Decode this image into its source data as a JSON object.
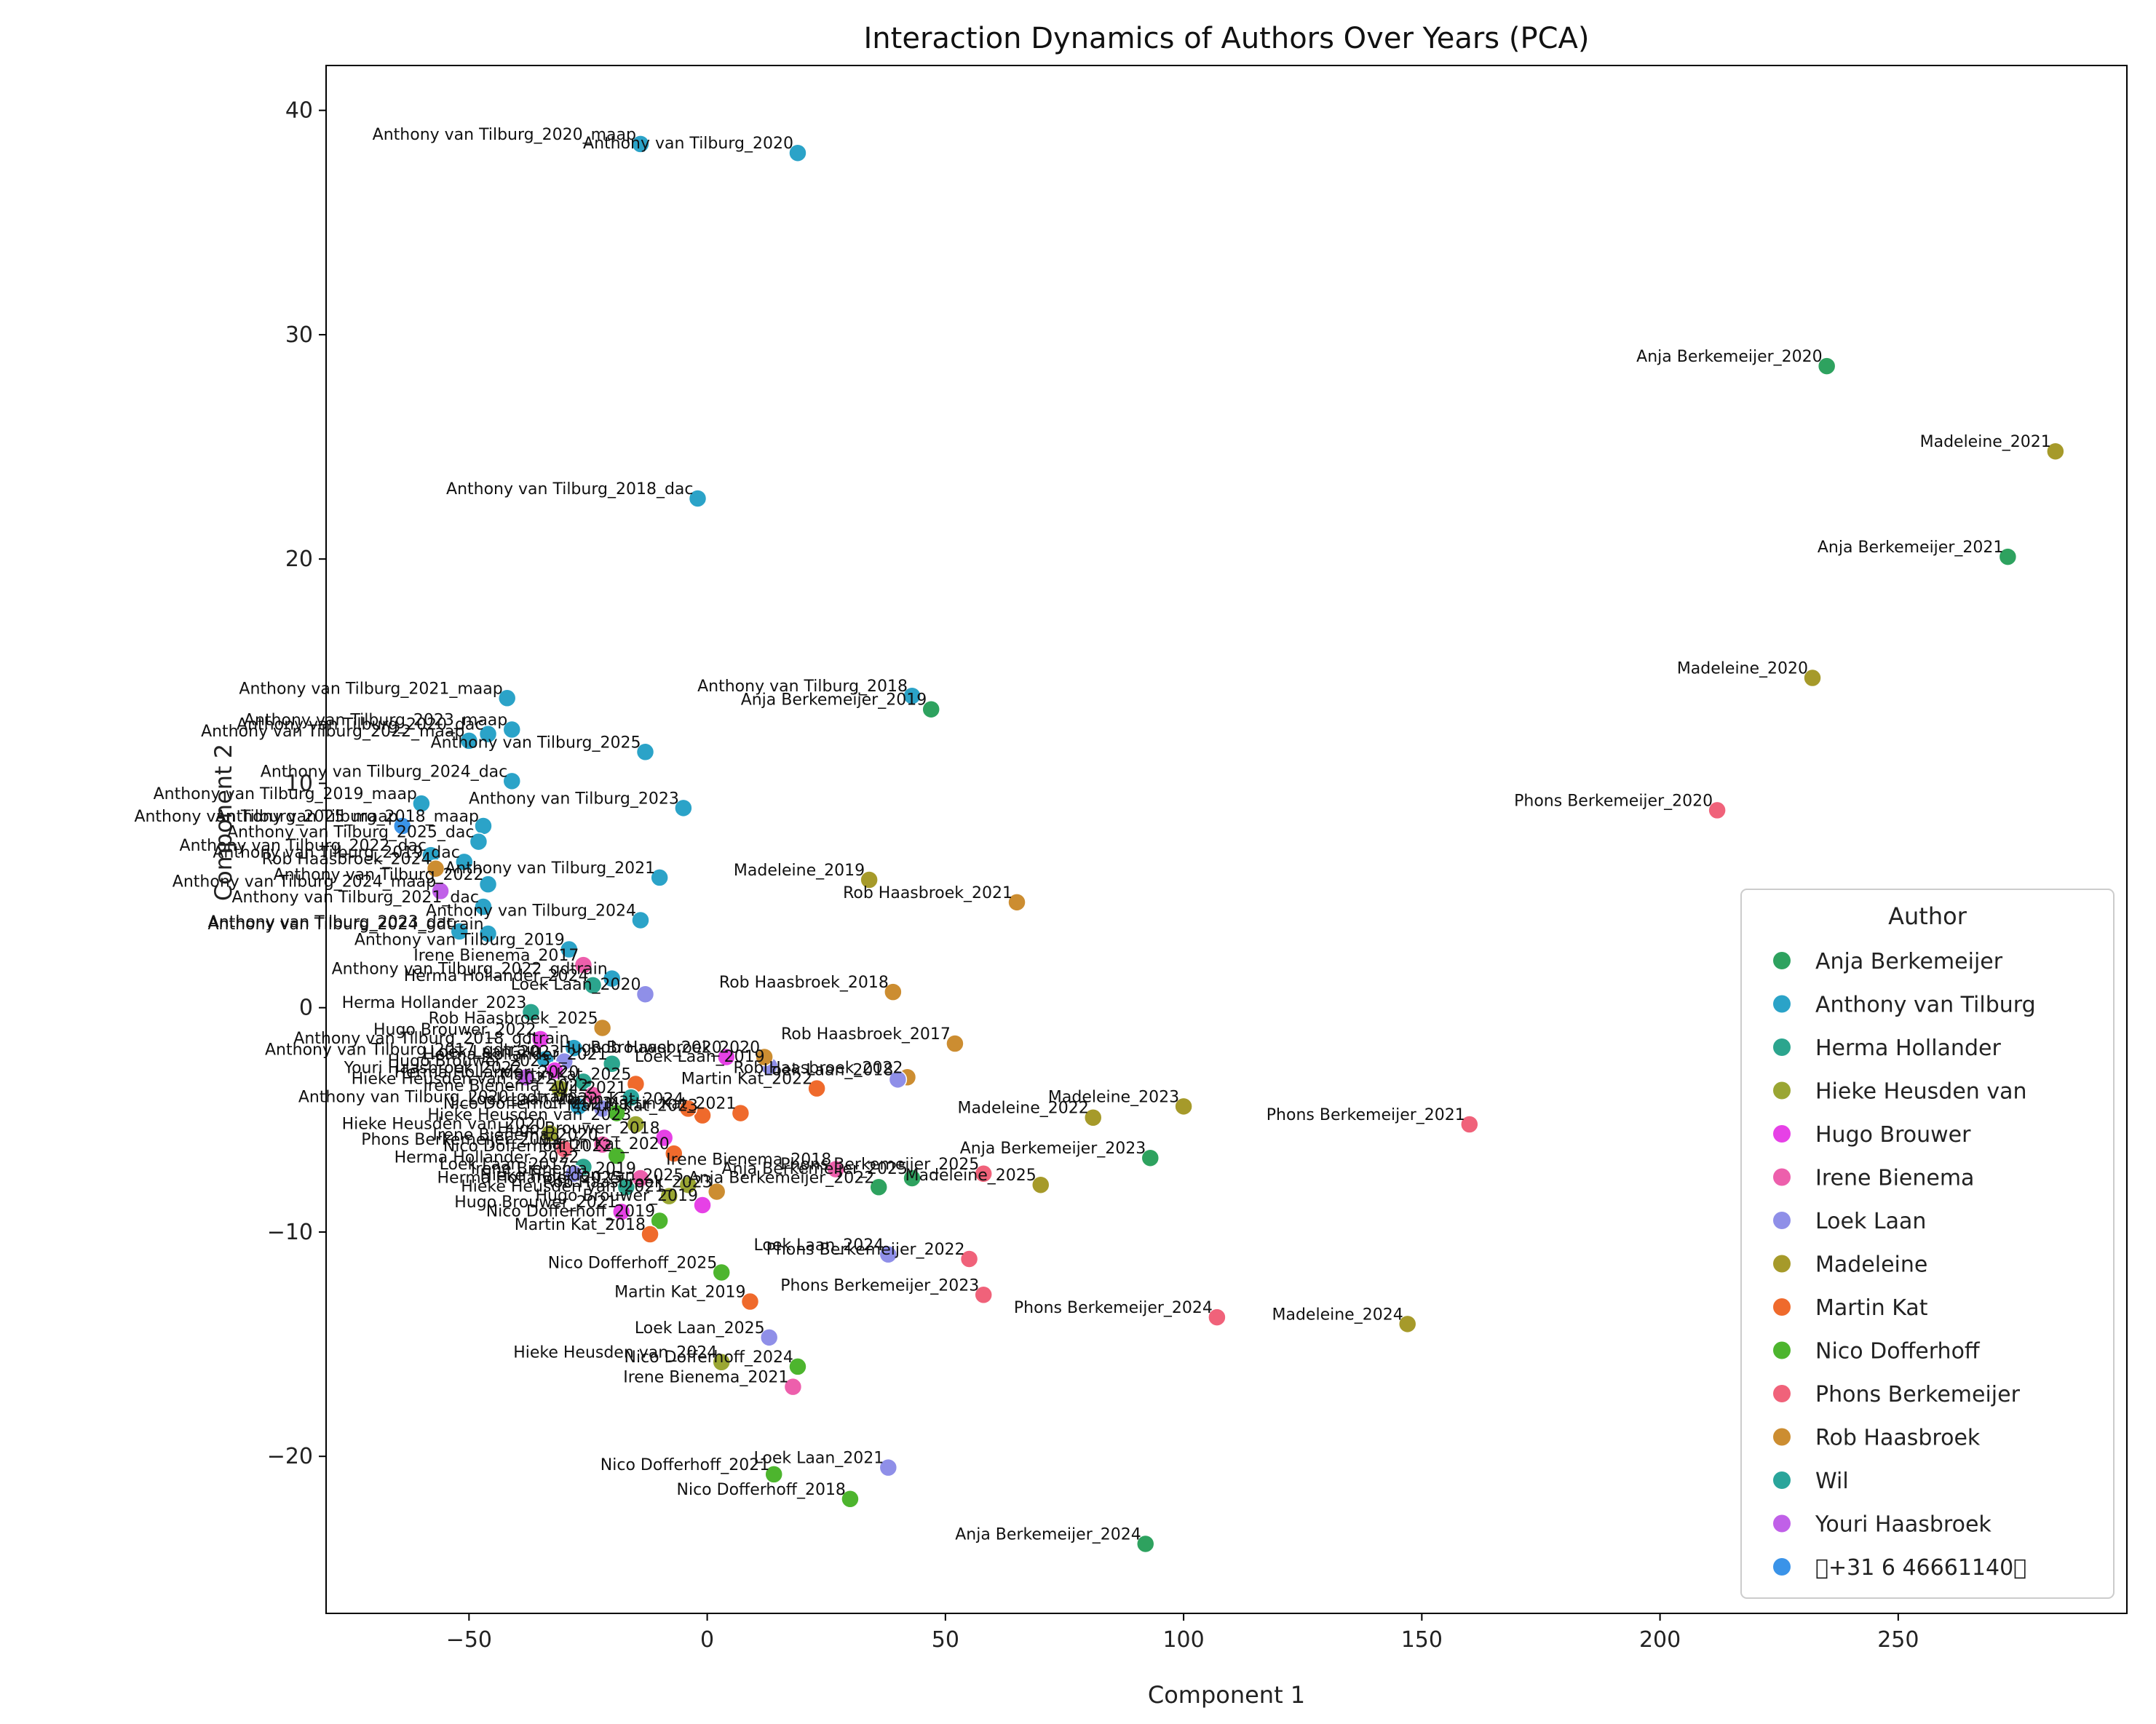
{
  "chart_data": {
    "type": "scatter",
    "title": "Interaction Dynamics of Authors Over Years (PCA)",
    "xlabel": "Component 1",
    "ylabel": "Component 2",
    "xlim": [
      -80,
      298
    ],
    "ylim": [
      -27,
      42
    ],
    "x_ticks": [
      -50,
      0,
      50,
      100,
      150,
      200,
      250
    ],
    "y_ticks": [
      -20,
      -10,
      0,
      10,
      20,
      30,
      40
    ],
    "x_tick_labels": [
      "−50",
      "0",
      "50",
      "100",
      "150",
      "200",
      "250"
    ],
    "y_tick_labels": [
      "−20",
      "−10",
      "0",
      "10",
      "20",
      "30",
      "40"
    ],
    "legend": {
      "title": "Author",
      "position": "lower-right",
      "entries": [
        {
          "name": "Anja Berkemeijer",
          "color": "#2ea25f"
        },
        {
          "name": "Anthony van Tilburg",
          "color": "#2ba3c8"
        },
        {
          "name": "Herma Hollander",
          "color": "#2ca58e"
        },
        {
          "name": "Hieke Heusden van",
          "color": "#9aa633"
        },
        {
          "name": "Hugo Brouwer",
          "color": "#e641e6"
        },
        {
          "name": "Irene Bienema",
          "color": "#ed5fac"
        },
        {
          "name": "Loek Laan",
          "color": "#8f8fe8"
        },
        {
          "name": "Madeleine",
          "color": "#a69a2a"
        },
        {
          "name": "Martin Kat",
          "color": "#ef6a2c"
        },
        {
          "name": "Nico Dofferhoff",
          "color": "#4db52e"
        },
        {
          "name": "Phons Berkemeijer",
          "color": "#f0627a"
        },
        {
          "name": "Rob Haasbroek",
          "color": "#cc8d31"
        },
        {
          "name": "Wil",
          "color": "#2aa59b"
        },
        {
          "name": "Youri Haasbroek",
          "color": "#c060e8"
        },
        {
          "name": "􀀀+31 6 46661140􀀀",
          "color": "#3a93e8"
        }
      ]
    },
    "points": [
      {
        "label": "Anthony van Tilburg_2020_maap",
        "x": -14,
        "y": 38.5,
        "s": 1
      },
      {
        "label": "Anthony van Tilburg_2020",
        "x": 19,
        "y": 38.1,
        "s": 1
      },
      {
        "label": "Anja Berkemeijer_2020",
        "x": 235,
        "y": 28.6,
        "s": 0
      },
      {
        "label": "Madeleine_2021",
        "x": 283,
        "y": 24.8,
        "s": 7
      },
      {
        "label": "Anthony van Tilburg_2018_dac",
        "x": -2,
        "y": 22.7,
        "s": 1
      },
      {
        "label": "Anja Berkemeijer_2021",
        "x": 273,
        "y": 20.1,
        "s": 0
      },
      {
        "label": "Madeleine_2020",
        "x": 232,
        "y": 14.7,
        "s": 7
      },
      {
        "label": "Anthony van Tilburg_2021_maap",
        "x": -42,
        "y": 13.8,
        "s": 1
      },
      {
        "label": "Anthony van Tilburg_2018",
        "x": 43,
        "y": 13.9,
        "s": 1
      },
      {
        "label": "Anja Berkemeijer_2019",
        "x": 47,
        "y": 13.3,
        "s": 0
      },
      {
        "label": "Anthony van Tilburg_2023_maap",
        "x": -41,
        "y": 12.4,
        "s": 1
      },
      {
        "label": "Anthony van Tilburg_2020_dac",
        "x": -46,
        "y": 12.2,
        "s": 1
      },
      {
        "label": "Anthony van Tilburg_2022_maap",
        "x": -50,
        "y": 11.9,
        "s": 1
      },
      {
        "label": "Anthony van Tilburg_2025",
        "x": -13,
        "y": 11.4,
        "s": 1
      },
      {
        "label": "Anthony van Tilburg_2024_dac",
        "x": -41,
        "y": 10.1,
        "s": 1
      },
      {
        "label": "Anthony van Tilburg_2019_maap",
        "x": -60,
        "y": 9.1,
        "s": 1
      },
      {
        "label": "Anthony van Tilburg_2023",
        "x": -5,
        "y": 8.9,
        "s": 1
      },
      {
        "label": "Phons Berkemeijer_2020",
        "x": 212,
        "y": 8.8,
        "s": 10
      },
      {
        "label": "Anthony van Tilburg_2018_maap",
        "x": -47,
        "y": 8.1,
        "s": 1
      },
      {
        "label": "Anthony van Tilburg_2025_maap",
        "x": -64,
        "y": 8.1,
        "s": 14
      },
      {
        "label": "Anthony van Tilburg_2025_dac",
        "x": -48,
        "y": 7.4,
        "s": 1
      },
      {
        "label": "Anthony van Tilburg_2022_dac",
        "x": -58,
        "y": 6.8,
        "s": 1
      },
      {
        "label": "Anthony van Tilburg_2019_dac",
        "x": -51,
        "y": 6.5,
        "s": 1
      },
      {
        "label": "Rob Haasbroek_2024",
        "x": -57,
        "y": 6.2,
        "s": 11
      },
      {
        "label": "Anthony van Tilburg_2024_maap",
        "x": -56,
        "y": 5.2,
        "s": 13
      },
      {
        "label": "Anthony van Tilburg_2021",
        "x": -10,
        "y": 5.8,
        "s": 1
      },
      {
        "label": "Madeleine_2019",
        "x": 34,
        "y": 5.7,
        "s": 7
      },
      {
        "label": "Anthony van Tilburg_2022",
        "x": -46,
        "y": 5.5,
        "s": 1
      },
      {
        "label": "Rob Haasbroek_2021",
        "x": 65,
        "y": 4.7,
        "s": 11
      },
      {
        "label": "Anthony van Tilburg_2021_dac",
        "x": -47,
        "y": 4.5,
        "s": 1
      },
      {
        "label": "Anthony van Tilburg_2024",
        "x": -14,
        "y": 3.9,
        "s": 1
      },
      {
        "label": "Anthony van Tilburg_2023_dac",
        "x": -52,
        "y": 3.4,
        "s": 1
      },
      {
        "label": "Anthony van Tilburg_2024_gdtrain",
        "x": -46,
        "y": 3.3,
        "s": 1
      },
      {
        "label": "Anthony van Tilburg_2019",
        "x": -29,
        "y": 2.6,
        "s": 1
      },
      {
        "label": "Irene Bienema_2017",
        "x": -26,
        "y": 1.9,
        "s": 5
      },
      {
        "label": "Anthony van Tilburg_2022_gdtrain",
        "x": -20,
        "y": 1.3,
        "s": 1
      },
      {
        "label": "Herma Hollander_2024",
        "x": -24,
        "y": 1.0,
        "s": 2
      },
      {
        "label": "Loek Laan_2020",
        "x": -13,
        "y": 0.6,
        "s": 6
      },
      {
        "label": "Rob Haasbroek_2018",
        "x": 39,
        "y": 0.7,
        "s": 11
      },
      {
        "label": "Herma Hollander_2023",
        "x": -37,
        "y": -0.2,
        "s": 2
      },
      {
        "label": "Rob Haasbroek_2025",
        "x": -22,
        "y": -0.9,
        "s": 11
      },
      {
        "label": "Hugo Brouwer_2022",
        "x": -35,
        "y": -1.4,
        "s": 4
      },
      {
        "label": "Rob Haasbroek_2017",
        "x": 52,
        "y": -1.6,
        "s": 11
      },
      {
        "label": "Hugo Brouwer_2020",
        "x": 4,
        "y": -2.2,
        "s": 4
      },
      {
        "label": "Loek Laan_2019",
        "x": 13,
        "y": -2.6,
        "s": 6
      },
      {
        "label": "Rob Haasbroek_2022",
        "x": 42,
        "y": -3.1,
        "s": 11
      },
      {
        "label": "Loek Laan_2018",
        "x": 40,
        "y": -3.2,
        "s": 6
      },
      {
        "label": "Martin Kat_2022",
        "x": 23,
        "y": -3.6,
        "s": 8
      },
      {
        "label": "Madeleine_2023",
        "x": 100,
        "y": -4.4,
        "s": 7
      },
      {
        "label": "Madeleine_2022",
        "x": 81,
        "y": -4.9,
        "s": 7
      },
      {
        "label": "Phons Berkemeijer_2021",
        "x": 160,
        "y": -5.2,
        "s": 10
      },
      {
        "label": "Martin Kat_2021",
        "x": 7,
        "y": -4.7,
        "s": 8
      },
      {
        "label": "Martin Kat_2023",
        "x": -1,
        "y": -4.8,
        "s": 8
      },
      {
        "label": "Hugo Brouwer_2018",
        "x": -9,
        "y": -5.8,
        "s": 4
      },
      {
        "label": "Nico Dofferhoff_2022",
        "x": -19,
        "y": -6.6,
        "s": 9
      },
      {
        "label": "Martin Kat_2020",
        "x": -7,
        "y": -6.5,
        "s": 8
      },
      {
        "label": "Anja Berkemeijer_2023",
        "x": 93,
        "y": -6.7,
        "s": 0
      },
      {
        "label": "Phons Berkemeijer_2025",
        "x": 58,
        "y": -7.4,
        "s": 10
      },
      {
        "label": "Irene Bienema_2018",
        "x": 27,
        "y": -7.2,
        "s": 5
      },
      {
        "label": "Anja Berkemeijer_2025",
        "x": 43,
        "y": -7.6,
        "s": 0
      },
      {
        "label": "Madeleine_2025",
        "x": 70,
        "y": -7.9,
        "s": 7
      },
      {
        "label": "Anja Berkemeijer_2022",
        "x": 36,
        "y": -8.0,
        "s": 0
      },
      {
        "label": "Herma Hollander_2025",
        "x": -17,
        "y": -8.0,
        "s": 2
      },
      {
        "label": "Hieke Heusden van_2021",
        "x": -8,
        "y": -8.4,
        "s": 3
      },
      {
        "label": "Hugo Brouwer_2019",
        "x": -1,
        "y": -8.8,
        "s": 4
      },
      {
        "label": "Hugo Brouwer_2021",
        "x": -18,
        "y": -9.1,
        "s": 4
      },
      {
        "label": "Nico Dofferhoff_2019",
        "x": -10,
        "y": -9.5,
        "s": 9
      },
      {
        "label": "Martin Kat_2018",
        "x": -12,
        "y": -10.1,
        "s": 8
      },
      {
        "label": "Loek Laan_2024",
        "x": 38,
        "y": -11.0,
        "s": 6
      },
      {
        "label": "Phons Berkemeijer_2022",
        "x": 55,
        "y": -11.2,
        "s": 10
      },
      {
        "label": "Nico Dofferhoff_2025",
        "x": 3,
        "y": -11.8,
        "s": 9
      },
      {
        "label": "Phons Berkemeijer_2023",
        "x": 58,
        "y": -12.8,
        "s": 10
      },
      {
        "label": "Martin Kat_2019",
        "x": 9,
        "y": -13.1,
        "s": 8
      },
      {
        "label": "Phons Berkemeijer_2024",
        "x": 107,
        "y": -13.8,
        "s": 10
      },
      {
        "label": "Madeleine_2024",
        "x": 147,
        "y": -14.1,
        "s": 7
      },
      {
        "label": "Loek Laan_2025",
        "x": 13,
        "y": -14.7,
        "s": 6
      },
      {
        "label": "Hieke Heusden van_2024",
        "x": 3,
        "y": -15.8,
        "s": 3
      },
      {
        "label": "Nico Dofferhoff_2024",
        "x": 19,
        "y": -16.0,
        "s": 9
      },
      {
        "label": "Irene Bienema_2021",
        "x": 18,
        "y": -16.9,
        "s": 5
      },
      {
        "label": "Loek Laan_2021",
        "x": 38,
        "y": -20.5,
        "s": 6
      },
      {
        "label": "Nico Dofferhoff_2021",
        "x": 14,
        "y": -20.8,
        "s": 9
      },
      {
        "label": "Nico Dofferhoff_2018",
        "x": 30,
        "y": -21.9,
        "s": 9
      },
      {
        "label": "Anja Berkemeijer_2024",
        "x": 92,
        "y": -23.9,
        "s": 0
      },
      {
        "label": "Anthony van Tilburg_2018_gdtrain",
        "x": -28,
        "y": -1.8,
        "s": 1
      },
      {
        "label": "Anthony van Tilburg_2017_gdtrain",
        "x": -34,
        "y": -2.3,
        "s": 1
      },
      {
        "label": "Loek Laan_2023",
        "x": -30,
        "y": -2.4,
        "s": 6
      },
      {
        "label": "Hugo Brouwer_2023",
        "x": -32,
        "y": -2.8,
        "s": 4
      },
      {
        "label": "Herma Hollander_2020",
        "x": -26,
        "y": -3.3,
        "s": 2
      },
      {
        "label": "Hieke Heusden van_2022",
        "x": -31,
        "y": -3.6,
        "s": 3
      },
      {
        "label": "Anthony van Tilburg_2020_gdtrain",
        "x": -27,
        "y": -4.4,
        "s": 1
      },
      {
        "label": "Loek Laan_2022",
        "x": -22,
        "y": -4.5,
        "s": 6
      },
      {
        "label": "Martin Kat_2024",
        "x": -4,
        "y": -4.5,
        "s": 8
      },
      {
        "label": "Hieke Heusden van_2023",
        "x": -15,
        "y": -5.2,
        "s": 3
      },
      {
        "label": "Phons Berkemeijer_2019",
        "x": -30,
        "y": -6.3,
        "s": 10
      },
      {
        "label": "Herma Hollander_2022",
        "x": -26,
        "y": -7.1,
        "s": 2
      },
      {
        "label": "Irene Bienema_2019",
        "x": -14,
        "y": -7.6,
        "s": 5
      },
      {
        "label": "Hieke Heusden van_2025",
        "x": -4,
        "y": -7.9,
        "s": 3
      },
      {
        "label": "Rob Haasbroek_2023",
        "x": 2,
        "y": -8.2,
        "s": 11
      },
      {
        "label": "Rob Haasbroek_2020",
        "x": 12,
        "y": -2.2,
        "s": 11
      },
      {
        "label": "Martin Kat_2025",
        "x": -15,
        "y": -3.4,
        "s": 8
      },
      {
        "label": "Wil_2021",
        "x": -16,
        "y": -4.0,
        "s": 12
      },
      {
        "label": "Herma Hollander_2021",
        "x": -20,
        "y": -2.5,
        "s": 2
      },
      {
        "label": "Youri Haasbroek_2022",
        "x": -38,
        "y": -3.1,
        "s": 13
      },
      {
        "label": "Irene Bienema_2022",
        "x": -24,
        "y": -3.9,
        "s": 5
      },
      {
        "label": "Nico Dofferhoff_2023",
        "x": -19,
        "y": -4.7,
        "s": 9
      },
      {
        "label": "Hieke Heusden van_2020",
        "x": -33,
        "y": -5.6,
        "s": 3
      },
      {
        "label": "Irene Bienema_2020",
        "x": -22,
        "y": -6.1,
        "s": 5
      },
      {
        "label": "Loek Laan_2017",
        "x": -28,
        "y": -7.4,
        "s": 6
      }
    ]
  }
}
